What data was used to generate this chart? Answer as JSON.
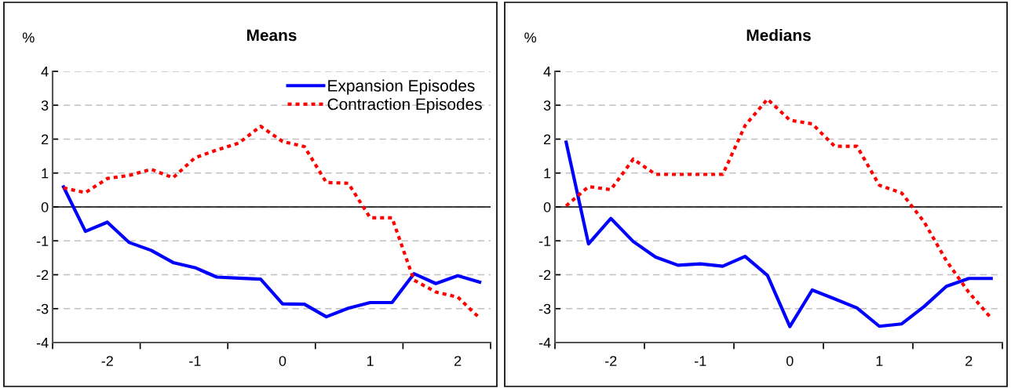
{
  "chart_data": [
    {
      "type": "line",
      "title": "Means",
      "ylabel": "%",
      "x": [
        -2.5,
        -2.25,
        -2.0,
        -1.75,
        -1.5,
        -1.25,
        -1.0,
        -0.75,
        -0.5,
        -0.25,
        0.0,
        0.25,
        0.5,
        0.75,
        1.0,
        1.25,
        1.5,
        1.75,
        2.0,
        2.25
      ],
      "series": [
        {
          "name": "Expansion Episodes",
          "color": "#0000ff",
          "line_style": "solid",
          "values": [
            0.59,
            -0.72,
            -0.45,
            -1.05,
            -1.28,
            -1.64,
            -1.79,
            -2.07,
            -2.1,
            -2.13,
            -2.86,
            -2.87,
            -3.24,
            -2.99,
            -2.82,
            -2.82,
            -1.97,
            -2.26,
            -2.03,
            -2.22
          ]
        },
        {
          "name": "Contraction Episodes",
          "color": "#ff0000",
          "line_style": "dotted",
          "values": [
            0.56,
            0.42,
            0.84,
            0.93,
            1.11,
            0.86,
            1.45,
            1.68,
            1.88,
            2.38,
            1.93,
            1.78,
            0.72,
            0.7,
            -0.32,
            -0.32,
            -2.16,
            -2.51,
            -2.66,
            -3.28
          ]
        }
      ],
      "xlim": [
        -2.625,
        2.375
      ],
      "xticks": [
        {
          "value": -2.625,
          "label": null
        },
        -2,
        {
          "value": -1.625,
          "label": null
        },
        -1,
        {
          "value": -0.625,
          "label": null
        },
        0,
        {
          "value": 0.375,
          "label": null
        },
        1,
        {
          "value": 1.375,
          "label": null
        },
        2,
        {
          "value": 2.375,
          "label": null
        }
      ],
      "ylim": [
        -4,
        4
      ],
      "yticks": [
        -4,
        -3,
        -2,
        -1,
        0,
        1,
        2,
        3,
        4
      ],
      "ref_lines": [
        {
          "axis": "y",
          "value": 0,
          "color": "#000000",
          "line_style": "solid"
        }
      ],
      "grid": "y",
      "legend": "top right"
    },
    {
      "type": "line",
      "title": "Medians",
      "ylabel": "%",
      "x": [
        -2.5,
        -2.25,
        -2.0,
        -1.75,
        -1.5,
        -1.25,
        -1.0,
        -0.75,
        -0.5,
        -0.25,
        0.0,
        0.25,
        0.5,
        0.75,
        1.0,
        1.25,
        1.5,
        1.75,
        2.0,
        2.25
      ],
      "series": [
        {
          "color": "#0000ff",
          "line_style": "solid",
          "values": [
            1.91,
            -1.09,
            -0.34,
            -1.02,
            -1.48,
            -1.72,
            -1.68,
            -1.75,
            -1.46,
            -2.02,
            -3.53,
            -2.45,
            -2.71,
            -2.98,
            -3.52,
            -3.45,
            -2.94,
            -2.34,
            -2.11,
            -2.11
          ]
        },
        {
          "color": "#ff0000",
          "line_style": "dotted",
          "values": [
            0.03,
            0.6,
            0.51,
            1.41,
            0.96,
            0.96,
            0.96,
            0.96,
            2.4,
            3.18,
            2.56,
            2.45,
            1.79,
            1.79,
            0.64,
            0.41,
            -0.44,
            -1.59,
            -2.52,
            -3.28
          ]
        }
      ],
      "xlim": [
        -2.625,
        2.375
      ],
      "xticks": [
        {
          "value": -2.625,
          "label": null
        },
        -2,
        {
          "value": -1.625,
          "label": null
        },
        -1,
        {
          "value": -0.625,
          "label": null
        },
        0,
        {
          "value": 0.375,
          "label": null
        },
        1,
        {
          "value": 1.375,
          "label": null
        },
        2,
        {
          "value": 2.375,
          "label": null
        }
      ],
      "ylim": [
        -4,
        4
      ],
      "yticks": [
        -4,
        -3,
        -2,
        -1,
        0,
        1,
        2,
        3,
        4
      ],
      "ref_lines": [
        {
          "axis": "y",
          "value": 0,
          "color": "#000000",
          "line_style": "solid"
        }
      ],
      "grid": "y",
      "legend": false
    }
  ]
}
